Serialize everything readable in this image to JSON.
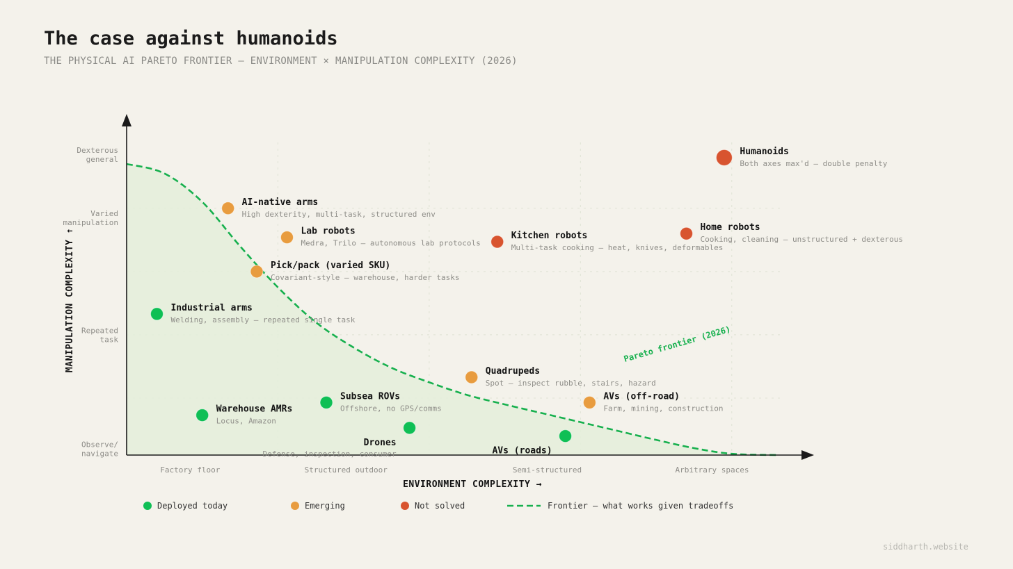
{
  "title": "The case against humanoids",
  "subtitle": "THE PHYSICAL AI PARETO FRONTIER — ENVIRONMENT × MANIPULATION COMPLEXITY (2026)",
  "watermark": "siddharth.website",
  "colors": {
    "deployed": "#0fbf55",
    "emerging": "#e89c3f",
    "not_solved": "#d8542f",
    "frontier": "#17b04e",
    "frontier_fill": "#e4eedb",
    "axis": "#1a1a1a",
    "grid": "#dfe3d4",
    "tick_text": "#8e8d88",
    "label_text": "#141414",
    "desc_text": "#8f8e89"
  },
  "chart_data": {
    "type": "scatter",
    "title": "The case against humanoids",
    "subtitle": "THE PHYSICAL AI PARETO FRONTIER — ENVIRONMENT × MANIPULATION COMPLEXITY (2026)",
    "xlabel": "ENVIRONMENT COMPLEXITY →",
    "ylabel": "MANIPULATION COMPLEXITY ↑",
    "xlim": [
      0,
      4.3
    ],
    "ylim": [
      0,
      4.6
    ],
    "x_ticks": [
      {
        "value": 0.42,
        "label": "Factory floor"
      },
      {
        "value": 1.45,
        "label": "Structured outdoor"
      },
      {
        "value": 2.78,
        "label": "Semi-structured"
      },
      {
        "value": 3.87,
        "label": "Arbitrary spaces"
      }
    ],
    "y_ticks": [
      {
        "value": 0.1,
        "lines": [
          "Observe/",
          "navigate"
        ]
      },
      {
        "value": 1.9,
        "lines": [
          "Repeated",
          "task"
        ]
      },
      {
        "value": 3.75,
        "lines": [
          "Varied",
          "manipulation"
        ]
      },
      {
        "value": 4.75,
        "lines": [
          "Dexterous",
          "general"
        ]
      }
    ],
    "gridlines_x": [
      1.0,
      2.0,
      3.0,
      4.0
    ],
    "gridlines_y": [
      0.9,
      1.9,
      2.9,
      3.9
    ],
    "grid": true,
    "legend_position": "bottom",
    "legend": [
      {
        "label": "Deployed today",
        "category": "deployed"
      },
      {
        "label": "Emerging",
        "category": "emerging"
      },
      {
        "label": "Not solved",
        "category": "not_solved"
      },
      {
        "label": "Frontier — what works given tradeoffs",
        "category": "frontier"
      }
    ],
    "frontier": {
      "label": "Pareto frontier (2026)",
      "points": [
        [
          0,
          4.6
        ],
        [
          0.25,
          4.45
        ],
        [
          0.5,
          4.0
        ],
        [
          0.75,
          3.3
        ],
        [
          1.0,
          2.65
        ],
        [
          1.25,
          2.1
        ],
        [
          1.5,
          1.7
        ],
        [
          1.75,
          1.38
        ],
        [
          2.0,
          1.15
        ],
        [
          2.25,
          0.95
        ],
        [
          2.5,
          0.8
        ],
        [
          2.75,
          0.66
        ],
        [
          3.0,
          0.52
        ],
        [
          3.25,
          0.38
        ],
        [
          3.5,
          0.24
        ],
        [
          3.75,
          0.11
        ],
        [
          4.0,
          0.02
        ],
        [
          4.3,
          0.0
        ]
      ]
    },
    "points": [
      {
        "name": "Humanoids",
        "desc": "Both axes max'd — double penalty",
        "x": 3.95,
        "y": 4.7,
        "category": "not_solved",
        "size": "large",
        "label_side": "right"
      },
      {
        "name": "Home robots",
        "desc": "Cooking, cleaning — unstructured + dexterous",
        "x": 3.7,
        "y": 3.5,
        "category": "not_solved",
        "size": "normal",
        "label_side": "right"
      },
      {
        "name": "Kitchen robots",
        "desc": "Multi-task cooking — heat, knives, deformables",
        "x": 2.45,
        "y": 3.37,
        "category": "not_solved",
        "size": "normal",
        "label_side": "right"
      },
      {
        "name": "AI-native arms",
        "desc": "High dexterity, multi-task, structured env",
        "x": 0.67,
        "y": 3.9,
        "category": "emerging",
        "size": "normal",
        "label_side": "right"
      },
      {
        "name": "Lab robots",
        "desc": "Medra, Trilo — autonomous lab protocols",
        "x": 1.06,
        "y": 3.44,
        "category": "emerging",
        "size": "normal",
        "label_side": "right"
      },
      {
        "name": "Pick/pack (varied SKU)",
        "desc": "Covariant-style — warehouse, harder tasks",
        "x": 0.86,
        "y": 2.9,
        "category": "emerging",
        "size": "normal",
        "label_side": "right"
      },
      {
        "name": "Industrial arms",
        "desc": "Welding, assembly — repeated single task",
        "x": 0.2,
        "y": 2.23,
        "category": "deployed",
        "size": "normal",
        "label_side": "right"
      },
      {
        "name": "Quadrupeds",
        "desc": "Spot — inspect rubble, stairs, hazard",
        "x": 2.28,
        "y": 1.23,
        "category": "emerging",
        "size": "normal",
        "label_side": "right"
      },
      {
        "name": "AVs (off-road)",
        "desc": "Farm, mining, construction",
        "x": 3.06,
        "y": 0.83,
        "category": "emerging",
        "size": "normal",
        "label_side": "right"
      },
      {
        "name": "Subsea ROVs",
        "desc": "Offshore, no GPS/comms",
        "x": 1.32,
        "y": 0.83,
        "category": "deployed",
        "size": "normal",
        "label_side": "right"
      },
      {
        "name": "Warehouse AMRs",
        "desc": "Locus, Amazon",
        "x": 0.5,
        "y": 0.63,
        "category": "deployed",
        "size": "normal",
        "label_side": "right"
      },
      {
        "name": "Drones",
        "desc": "Defense, inspection, consumer",
        "x": 1.87,
        "y": 0.43,
        "category": "deployed",
        "size": "normal",
        "label_side": "left"
      },
      {
        "name": "AVs (roads)",
        "desc": "",
        "x": 2.9,
        "y": 0.3,
        "category": "deployed",
        "size": "normal",
        "label_side": "left"
      }
    ]
  }
}
